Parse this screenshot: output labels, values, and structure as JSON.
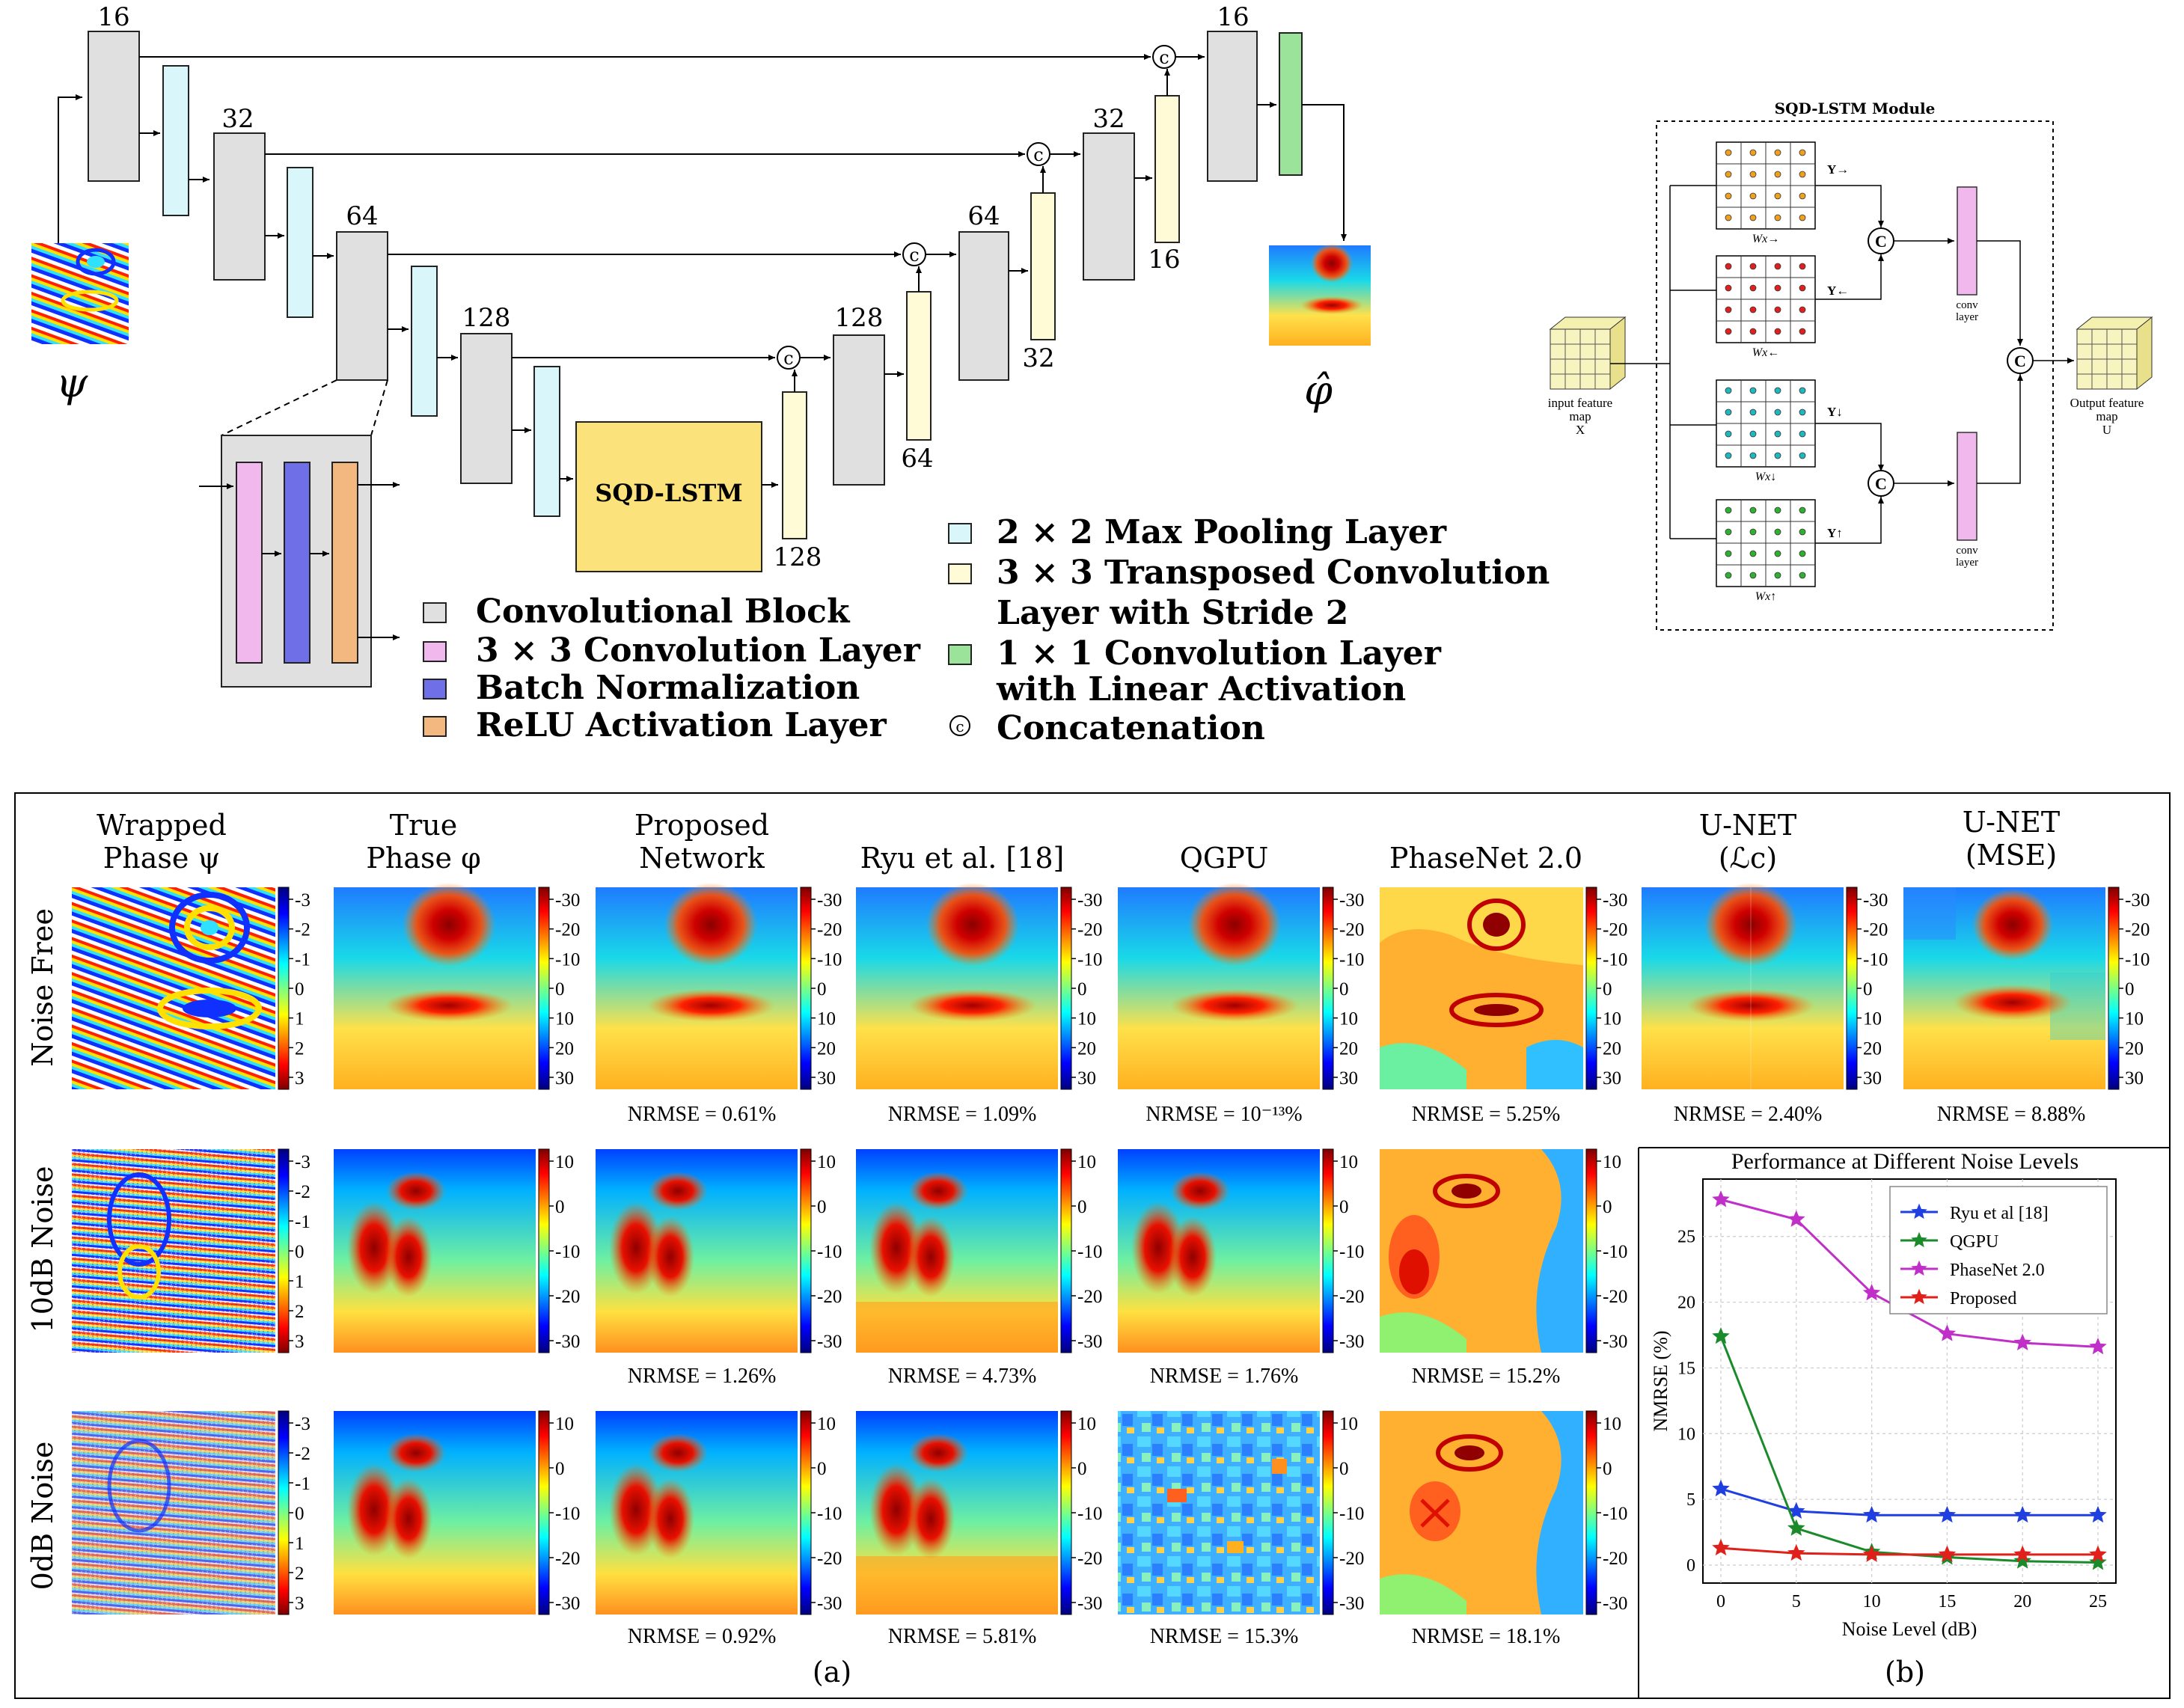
{
  "architecture": {
    "input_label": "ψ",
    "output_label": "φ̂",
    "encoder_channels": [
      "16",
      "32",
      "64",
      "128"
    ],
    "decoder_channels": [
      "128",
      "64",
      "32",
      "16"
    ],
    "upconv_channels": [
      "128",
      "64",
      "32",
      "16"
    ],
    "bottleneck_label": "SQD-LSTM",
    "concat_symbol": "c",
    "legend": {
      "conv_block": "Convolutional Block",
      "conv3": "3 × 3 Convolution Layer",
      "batchnorm": "Batch Normalization",
      "relu": "ReLU Activation Layer",
      "maxpool": "2 × 2 Max Pooling Layer",
      "transposed_1": "3 × 3 Transposed Convolution",
      "transposed_2": "Layer with Stride 2",
      "conv1_1": "1 × 1 Convolution Layer",
      "conv1_2": "with Linear Activation",
      "concat": "Concatenation"
    },
    "colors": {
      "conv_block": "#e0e0e0",
      "conv3": "#f0b8ec",
      "batchnorm": "#6f6fe8",
      "relu": "#f2b880",
      "maxpool": "#d9f7fb",
      "transposed": "#fffbd6",
      "conv1": "#9be39b",
      "lstm": "#fce27a"
    }
  },
  "sqd_module": {
    "title": "SQD-LSTM Module",
    "input_1": "input feature",
    "input_2": "map",
    "input_3": "X",
    "output_1": "Output feature",
    "output_2": "map",
    "output_3": "U",
    "y_labels": [
      "Y→",
      "Y←",
      "Y↓",
      "Y↑"
    ],
    "w_labels": [
      "Wx→",
      "Wx←",
      "Wx↓",
      "Wx↑"
    ],
    "conv_label_1": "conv",
    "conv_label_2": "layer",
    "concat_symbol": "C"
  },
  "results": {
    "columns": [
      {
        "line1": "Wrapped",
        "line2": "Phase ψ"
      },
      {
        "line1": "True",
        "line2": "Phase φ"
      },
      {
        "line1": "Proposed",
        "line2": "Network"
      },
      {
        "line1": "",
        "line2": "Ryu et al. [18]"
      },
      {
        "line1": "",
        "line2": "QGPU"
      },
      {
        "line1": "",
        "line2": "PhaseNet 2.0"
      },
      {
        "line1": "U-NET",
        "line2": "(ℒc)"
      },
      {
        "line1": "U-NET",
        "line2": "(MSE)"
      }
    ],
    "rows": [
      "Noise Free",
      "10dB Noise",
      "0dB Noise"
    ],
    "wrapped_ticks": [
      "-3",
      "-2",
      "-1",
      "0",
      "1",
      "2",
      "3"
    ],
    "phase_ticks_row1": [
      "-30",
      "-20",
      "-10",
      "0",
      "10",
      "20",
      "30"
    ],
    "phase_ticks_row23": [
      "10",
      "0",
      "-10",
      "-20",
      "-30"
    ],
    "nrmse_row1": [
      "NRMSE = 0.61%",
      "NRMSE = 1.09%",
      "NRMSE = 10⁻¹³%",
      "NRMSE = 5.25%",
      "NRMSE = 2.40%",
      "NRMSE = 8.88%"
    ],
    "nrmse_row2": [
      "NRMSE = 1.26%",
      "NRMSE = 4.73%",
      "NRMSE = 1.76%",
      "NRMSE = 15.2%"
    ],
    "nrmse_row3": [
      "NRMSE = 0.92%",
      "NRMSE = 5.81%",
      "NRMSE = 15.3%",
      "NRMSE = 18.1%"
    ],
    "label_a": "(a)",
    "label_b": "(b)"
  },
  "chart_data": {
    "type": "line",
    "title": "Performance at Different Noise Levels",
    "xlabel": "Noise Level (dB)",
    "ylabel": "NMRSE (%)",
    "x": [
      0,
      5,
      10,
      15,
      20,
      25
    ],
    "xticks": [
      "0",
      "5",
      "10",
      "15",
      "20",
      "25"
    ],
    "yticks": [
      "0",
      "5",
      "10",
      "15",
      "20",
      "25"
    ],
    "xlim": [
      0,
      25
    ],
    "ylim": [
      0,
      28
    ],
    "grid": true,
    "legend_position": "top-right",
    "series": [
      {
        "name": "Ryu et al [18]",
        "color": "#1f3fe0",
        "values": [
          5.8,
          4.1,
          3.8,
          3.8,
          3.8,
          3.8
        ]
      },
      {
        "name": "QGPU",
        "color": "#1a8a2a",
        "values": [
          17.4,
          2.8,
          1.0,
          0.6,
          0.3,
          0.2
        ]
      },
      {
        "name": "PhaseNet 2.0",
        "color": "#c030c8",
        "values": [
          27.8,
          26.3,
          20.7,
          17.6,
          16.9,
          16.6
        ]
      },
      {
        "name": "Proposed",
        "color": "#e0201a",
        "values": [
          1.3,
          0.9,
          0.8,
          0.8,
          0.8,
          0.8
        ]
      }
    ]
  }
}
